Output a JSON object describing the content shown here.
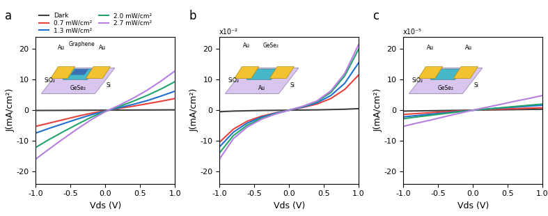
{
  "chart_data": [
    {
      "type": "line",
      "label": "a",
      "x_label": "Vds (V)",
      "y_label": "J(mA/cm²)",
      "legend": "lower left",
      "annotations": [
        "Au",
        "Graphene",
        "Au",
        "SiO₂",
        "GeSe₂",
        "Si"
      ],
      "x": [
        -1.0,
        -0.8,
        -0.6,
        -0.4,
        -0.2,
        0.0,
        0.2,
        0.4,
        0.6,
        0.8,
        1.0
      ],
      "xlim": [
        -1.0,
        1.0
      ],
      "xticks": [
        {
          "value": -1.0,
          "label": "-1.0"
        },
        {
          "value": -0.5,
          "label": "-0.5"
        },
        {
          "value": 0.0,
          "label": "0.0"
        },
        {
          "value": 0.5,
          "label": "0.5"
        },
        {
          "value": 1.0,
          "label": "1.0"
        }
      ],
      "ylim": [
        -24,
        24
      ],
      "yticks": [
        -20,
        -10,
        0,
        10,
        20
      ],
      "series": [
        {
          "name": "Dark",
          "color": "#404040",
          "values": [
            -0.1,
            -0.08,
            -0.06,
            -0.04,
            -0.02,
            0,
            0.02,
            0.04,
            0.06,
            0.08,
            0.1
          ]
        },
        {
          "name": "0.7 mW/cm²",
          "color": "#e8413c",
          "values": [
            -5.3,
            -4.2,
            -3.1,
            -2.0,
            -1.0,
            -0.2,
            0.6,
            1.3,
            2.1,
            2.9,
            3.8
          ]
        },
        {
          "name": "1.3 mW/cm²",
          "color": "#1f6fd0",
          "values": [
            -7.5,
            -5.9,
            -4.4,
            -2.9,
            -1.5,
            -0.3,
            0.8,
            1.9,
            3.1,
            4.6,
            6.2
          ]
        },
        {
          "name": "2.0 mW/cm²",
          "color": "#22a36b",
          "values": [
            -12.2,
            -9.5,
            -7.0,
            -4.6,
            -2.3,
            -0.4,
            1.2,
            2.9,
            4.8,
            6.9,
            9.3
          ]
        },
        {
          "name": "2.7 mW/cm²",
          "color": "#b57ee0",
          "values": [
            -16.0,
            -12.6,
            -9.3,
            -6.1,
            -3.1,
            -0.5,
            1.6,
            3.9,
            6.5,
            9.5,
            12.8
          ]
        }
      ]
    },
    {
      "type": "line",
      "label": "b",
      "x_label": "Vds (V)",
      "y_label": "J(mA/cm²)",
      "y_multiplier": "x10⁻²",
      "annotations": [
        "Au",
        "GeSe₂",
        "SiO₂",
        "Au",
        "Si"
      ],
      "x": [
        -1.0,
        -0.8,
        -0.6,
        -0.4,
        -0.2,
        0.0,
        0.2,
        0.4,
        0.6,
        0.8,
        1.0
      ],
      "xlim": [
        -1.0,
        1.0
      ],
      "xticks": [
        {
          "value": -1.0,
          "label": "-1.0"
        },
        {
          "value": -0.5,
          "label": "-0.5"
        },
        {
          "value": 0.0,
          "label": "0.0"
        },
        {
          "value": 0.5,
          "label": "0.5"
        },
        {
          "value": 1.0,
          "label": "1.0"
        }
      ],
      "ylim": [
        -24,
        24
      ],
      "yticks": [
        -20,
        -10,
        0,
        10,
        20
      ],
      "series": [
        {
          "name": "Dark",
          "color": "#404040",
          "values": [
            -0.5,
            -0.3,
            -0.2,
            -0.1,
            -0.05,
            0,
            0.05,
            0.1,
            0.2,
            0.3,
            0.5
          ]
        },
        {
          "name": "0.7 mW/cm²",
          "color": "#e8413c",
          "values": [
            -10.5,
            -6.2,
            -3.6,
            -2.0,
            -0.9,
            0,
            0.9,
            2.0,
            3.8,
            6.8,
            11.5
          ]
        },
        {
          "name": "1.3 mW/cm²",
          "color": "#1f6fd0",
          "values": [
            -12.0,
            -7.2,
            -4.2,
            -2.3,
            -1.0,
            0,
            1.0,
            2.4,
            4.8,
            8.8,
            15.5
          ]
        },
        {
          "name": "2.0 mW/cm²",
          "color": "#22a36b",
          "values": [
            -14.0,
            -8.3,
            -4.9,
            -2.7,
            -1.2,
            0,
            1.2,
            2.8,
            5.8,
            11.2,
            20.0
          ]
        },
        {
          "name": "2.7 mW/cm²",
          "color": "#b57ee0",
          "values": [
            -16.0,
            -9.3,
            -5.5,
            -3.0,
            -1.3,
            0,
            1.3,
            3.0,
            6.3,
            12.0,
            21.5
          ]
        }
      ]
    },
    {
      "type": "line",
      "label": "c",
      "x_label": "Vds (V)",
      "y_label": "J(mA/cm²)",
      "y_multiplier": "x10⁻⁵",
      "annotations": [
        "Au",
        "Au",
        "SiO₂",
        "GeSe₂",
        "Si"
      ],
      "x": [
        -1.0,
        -0.8,
        -0.6,
        -0.4,
        -0.2,
        0.0,
        0.2,
        0.4,
        0.6,
        0.8,
        1.0
      ],
      "xlim": [
        -1.0,
        1.0
      ],
      "xticks": [
        {
          "value": -1.0,
          "label": "-1.0"
        },
        {
          "value": -0.5,
          "label": "-0.5"
        },
        {
          "value": 0.0,
          "label": "0.0"
        },
        {
          "value": 0.5,
          "label": "0.5"
        },
        {
          "value": 1.0,
          "label": "1.0"
        }
      ],
      "ylim": [
        -24,
        24
      ],
      "yticks": [
        -20,
        -10,
        0,
        10,
        20
      ],
      "series": [
        {
          "name": "Dark",
          "color": "#404040",
          "values": [
            -0.3,
            -0.24,
            -0.18,
            -0.12,
            -0.06,
            0,
            0.06,
            0.12,
            0.18,
            0.24,
            0.3
          ]
        },
        {
          "name": "0.7 mW/cm²",
          "color": "#e8413c",
          "values": [
            -1.4,
            -1.1,
            -0.8,
            -0.55,
            -0.25,
            0,
            0.2,
            0.35,
            0.5,
            0.65,
            0.8
          ]
        },
        {
          "name": "1.3 mW/cm²",
          "color": "#1f6fd0",
          "values": [
            -2.2,
            -1.75,
            -1.3,
            -0.9,
            -0.45,
            0,
            0.35,
            0.7,
            1.0,
            1.3,
            1.6
          ]
        },
        {
          "name": "2.0 mW/cm²",
          "color": "#22a36b",
          "values": [
            -2.8,
            -2.2,
            -1.65,
            -1.1,
            -0.55,
            0,
            0.4,
            0.8,
            1.2,
            1.6,
            2.0
          ]
        },
        {
          "name": "2.7 mW/cm²",
          "color": "#b57ee0",
          "values": [
            -5.3,
            -4.2,
            -3.2,
            -2.1,
            -1.05,
            0,
            0.95,
            1.9,
            2.9,
            3.8,
            4.8
          ]
        }
      ]
    }
  ]
}
